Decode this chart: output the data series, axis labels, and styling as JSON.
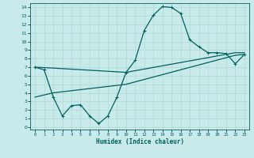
{
  "title": "",
  "xlabel": "Humidex (Indice chaleur)",
  "ylabel": "",
  "bg_color": "#c8eaea",
  "grid_color": "#b0d8d0",
  "line_color": "#006060",
  "xlim": [
    -0.5,
    23.5
  ],
  "ylim": [
    -0.3,
    14.5
  ],
  "xticks": [
    0,
    1,
    2,
    3,
    4,
    5,
    6,
    7,
    8,
    9,
    10,
    11,
    12,
    13,
    14,
    15,
    16,
    17,
    18,
    19,
    20,
    21,
    22,
    23
  ],
  "yticks": [
    0,
    1,
    2,
    3,
    4,
    5,
    6,
    7,
    8,
    9,
    10,
    11,
    12,
    13,
    14
  ],
  "line1_x": [
    0,
    1,
    2,
    3,
    4,
    5,
    6,
    7,
    8,
    9,
    10,
    11,
    12,
    13,
    14,
    15,
    16,
    17,
    18,
    19,
    20,
    21,
    22,
    23
  ],
  "line1_y": [
    7.0,
    6.7,
    3.5,
    1.3,
    2.5,
    2.6,
    1.3,
    0.4,
    1.3,
    3.5,
    6.4,
    7.8,
    11.3,
    13.1,
    14.1,
    14.0,
    13.3,
    10.2,
    9.4,
    8.7,
    8.7,
    8.6,
    7.4,
    8.5
  ],
  "line2_x": [
    0,
    2,
    10,
    22,
    23
  ],
  "line2_y": [
    7.0,
    6.9,
    6.4,
    8.7,
    8.7
  ],
  "line3_x": [
    0,
    2,
    10,
    22,
    23
  ],
  "line3_y": [
    3.5,
    4.0,
    5.0,
    8.4,
    8.5
  ],
  "marker": "+",
  "markersize": 3,
  "linewidth": 0.9
}
